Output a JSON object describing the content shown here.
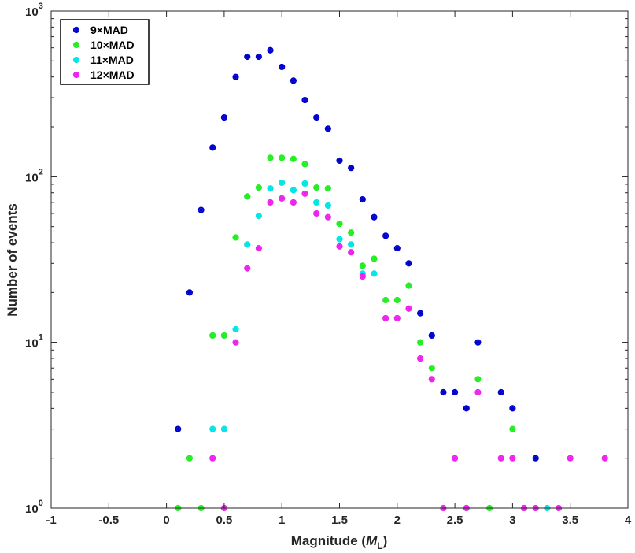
{
  "chart_data": {
    "type": "scatter",
    "xlabel": "Magnitude (",
    "xlabel_italic": "M",
    "xlabel_sub": "L",
    "xlabel_close": ")",
    "ylabel": "Number of events",
    "xlim": [
      -1,
      4
    ],
    "ylim": [
      1,
      1000
    ],
    "yscale": "log",
    "legend_position": "top-left",
    "x_tick_labels": [
      "-1",
      "-0.5",
      "0",
      "0.5",
      "1",
      "1.5",
      "2",
      "2.5",
      "3",
      "3.5",
      "4"
    ],
    "x_ticks": [
      -1,
      -0.5,
      0,
      0.5,
      1,
      1.5,
      2,
      2.5,
      3,
      3.5,
      4
    ],
    "y_ticks": [
      {
        "value": 1,
        "base": "10",
        "exp": "0"
      },
      {
        "value": 10,
        "base": "10",
        "exp": "1"
      },
      {
        "value": 100,
        "base": "10",
        "exp": "2"
      },
      {
        "value": 1000,
        "base": "10",
        "exp": "3"
      }
    ],
    "series": [
      {
        "name": "9×MAD",
        "color": "#0000cc",
        "points": [
          [
            0.1,
            3
          ],
          [
            0.2,
            20
          ],
          [
            0.3,
            63
          ],
          [
            0.4,
            150
          ],
          [
            0.5,
            228
          ],
          [
            0.6,
            400
          ],
          [
            0.7,
            530
          ],
          [
            0.8,
            530
          ],
          [
            0.9,
            580
          ],
          [
            1.0,
            460
          ],
          [
            1.1,
            380
          ],
          [
            1.2,
            290
          ],
          [
            1.3,
            228
          ],
          [
            1.4,
            195
          ],
          [
            1.5,
            125
          ],
          [
            1.6,
            113
          ],
          [
            1.7,
            73
          ],
          [
            1.8,
            57
          ],
          [
            1.9,
            44
          ],
          [
            2.0,
            37
          ],
          [
            2.1,
            30
          ],
          [
            2.2,
            15
          ],
          [
            2.3,
            11
          ],
          [
            2.4,
            5
          ],
          [
            2.5,
            5
          ],
          [
            2.6,
            4
          ],
          [
            2.7,
            10
          ],
          [
            2.9,
            5
          ],
          [
            3.0,
            4
          ],
          [
            3.2,
            2
          ]
        ]
      },
      {
        "name": "10×MAD",
        "color": "#22ee22",
        "points": [
          [
            0.1,
            1
          ],
          [
            0.2,
            2
          ],
          [
            0.3,
            1
          ],
          [
            0.4,
            11
          ],
          [
            0.5,
            11
          ],
          [
            0.6,
            43
          ],
          [
            0.7,
            76
          ],
          [
            0.8,
            86
          ],
          [
            0.9,
            130
          ],
          [
            1.0,
            130
          ],
          [
            1.1,
            128
          ],
          [
            1.2,
            119
          ],
          [
            1.3,
            86
          ],
          [
            1.4,
            85
          ],
          [
            1.5,
            52
          ],
          [
            1.6,
            46
          ],
          [
            1.7,
            29
          ],
          [
            1.8,
            32
          ],
          [
            1.9,
            18
          ],
          [
            2.0,
            18
          ],
          [
            2.1,
            22
          ],
          [
            2.2,
            10
          ],
          [
            2.3,
            7
          ],
          [
            2.6,
            1
          ],
          [
            2.7,
            6
          ],
          [
            2.8,
            1
          ],
          [
            3.0,
            3
          ]
        ]
      },
      {
        "name": "11×MAD",
        "color": "#00e5e5",
        "points": [
          [
            0.4,
            3
          ],
          [
            0.5,
            3
          ],
          [
            0.6,
            12
          ],
          [
            0.7,
            39
          ],
          [
            0.8,
            58
          ],
          [
            0.9,
            85
          ],
          [
            1.0,
            92
          ],
          [
            1.1,
            83
          ],
          [
            1.2,
            91
          ],
          [
            1.3,
            70
          ],
          [
            1.4,
            67
          ],
          [
            1.5,
            42
          ],
          [
            1.6,
            39
          ],
          [
            1.7,
            26
          ],
          [
            1.8,
            26
          ],
          [
            3.3,
            1
          ]
        ]
      },
      {
        "name": "12×MAD",
        "color": "#ee22ee",
        "points": [
          [
            0.4,
            2
          ],
          [
            0.5,
            1
          ],
          [
            0.6,
            10
          ],
          [
            0.7,
            28
          ],
          [
            0.8,
            37
          ],
          [
            0.9,
            70
          ],
          [
            1.0,
            74
          ],
          [
            1.1,
            70
          ],
          [
            1.2,
            79
          ],
          [
            1.3,
            60
          ],
          [
            1.4,
            57
          ],
          [
            1.5,
            38
          ],
          [
            1.6,
            35
          ],
          [
            1.7,
            25
          ],
          [
            1.9,
            14
          ],
          [
            2.0,
            14
          ],
          [
            2.1,
            16
          ],
          [
            2.2,
            8
          ],
          [
            2.3,
            6
          ],
          [
            2.4,
            1
          ],
          [
            2.5,
            2
          ],
          [
            2.6,
            1
          ],
          [
            2.7,
            5
          ],
          [
            2.9,
            2
          ],
          [
            3.0,
            2
          ],
          [
            3.1,
            1
          ],
          [
            3.2,
            1
          ],
          [
            3.4,
            1
          ],
          [
            3.5,
            2
          ],
          [
            3.8,
            2
          ]
        ]
      }
    ]
  }
}
